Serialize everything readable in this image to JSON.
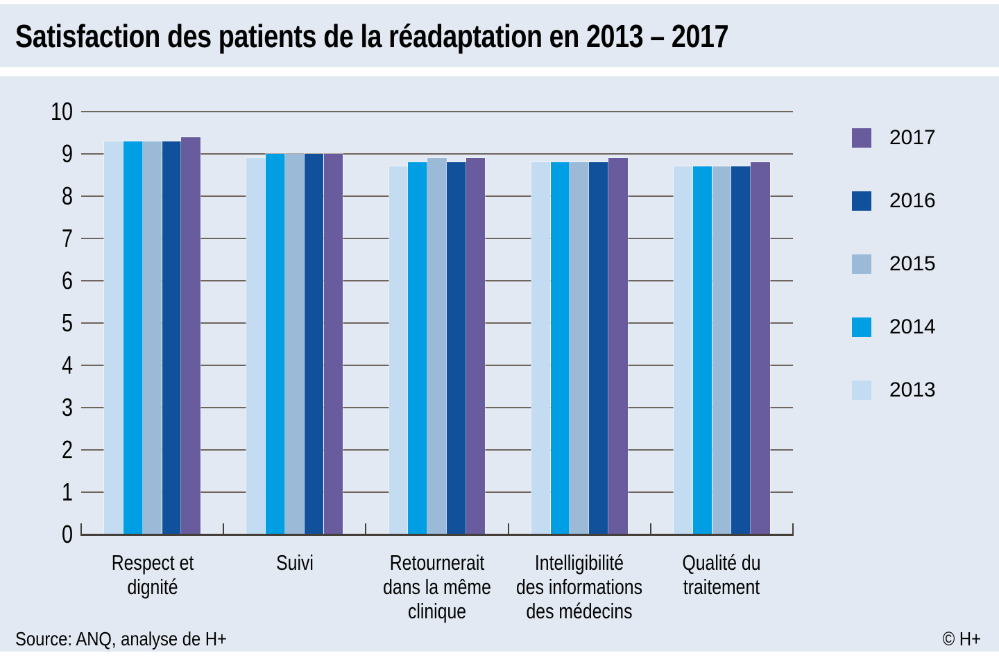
{
  "title": "Satisfaction des patients de la réadaptation en 2013 – 2017",
  "footer": {
    "source": "Source: ANQ, analyse de H+",
    "copyright": "© H+"
  },
  "colors": {
    "band_background": "#e2e9f2",
    "page_background": "#ffffff",
    "gridline": "#6e655e",
    "axis": "#443e39",
    "text": "#000000"
  },
  "chart_data": {
    "type": "bar",
    "title": "Satisfaction des patients de la réadaptation en 2013 – 2017",
    "xlabel": "",
    "ylabel": "",
    "ylim": [
      0,
      10
    ],
    "yticks": [
      0,
      1,
      2,
      3,
      4,
      5,
      6,
      7,
      8,
      9,
      10
    ],
    "grid": "horizontal",
    "legend_position": "right",
    "legend_order": [
      "2017",
      "2016",
      "2015",
      "2014",
      "2013"
    ],
    "categories": [
      "Respect et\ndignité",
      "Suivi",
      "Retournerait\ndans la même\nclinique",
      "Intelligibilité\ndes informations\ndes médecins",
      "Qualité du\ntraitement"
    ],
    "series": [
      {
        "name": "2013",
        "color": "#c3dcf2",
        "values": [
          9.3,
          8.9,
          8.7,
          8.8,
          8.7
        ]
      },
      {
        "name": "2014",
        "color": "#009fe3",
        "values": [
          9.3,
          9.0,
          8.8,
          8.8,
          8.7
        ]
      },
      {
        "name": "2015",
        "color": "#9bbad7",
        "values": [
          9.3,
          9.0,
          8.9,
          8.8,
          8.7
        ]
      },
      {
        "name": "2016",
        "color": "#11519c",
        "values": [
          9.3,
          9.0,
          8.8,
          8.8,
          8.7
        ]
      },
      {
        "name": "2017",
        "color": "#685b9e",
        "values": [
          9.4,
          9.0,
          8.9,
          8.9,
          8.8
        ]
      }
    ]
  }
}
